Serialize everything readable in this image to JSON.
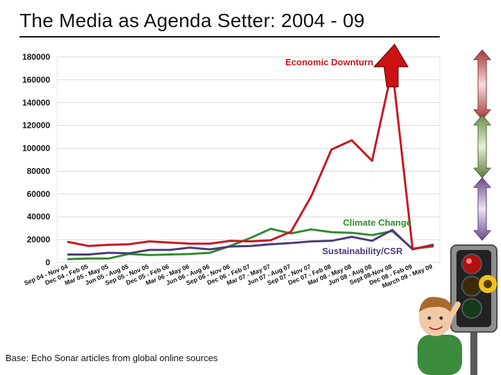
{
  "slide": {
    "title": "The Media as Agenda Setter: 2004 - 09",
    "footnote": "Base:  Echo Sonar articles from global online sources"
  },
  "colors": {
    "economic": "#c8141e",
    "climate": "#2e8b2e",
    "sustainability": "#4b3a78",
    "arrow_red": "#cc1111",
    "grid": "#d9d9d9"
  },
  "chart_data": {
    "type": "line",
    "title": "",
    "xlabel": "",
    "ylabel": "",
    "ylim": [
      0,
      180000
    ],
    "yticks": [
      "0",
      "20000",
      "40000",
      "60000",
      "80000",
      "100000",
      "120000",
      "140000",
      "160000",
      "180000"
    ],
    "grid": true,
    "categories": [
      "Sep 04 - Nov 04",
      "Dec 04 - Feb 05",
      "Mar 05 - May 05",
      "Jun 05 - Aug 05",
      "Sep 05 - Nov 05",
      "Dec 05 - Feb 06",
      "Mar 06 - May 06",
      "Jun 06 - Aug 06",
      "Sep 06 - Nov 06",
      "Dec 06 - Feb 07",
      "Mar 07 - May 07",
      "Jun 07 - Aug 07",
      "Sep 07 - Nov 07",
      "Dec 07 - Feb 08",
      "Mar 08 - May 08",
      "Jun 08 - Aug 08",
      "Sept 08-Nov 08",
      "Dec 08 - Feb 09",
      "March 09 - May 09"
    ],
    "series": [
      {
        "name": "Economic Downturn",
        "color": "#c8141e",
        "values": [
          18000,
          14500,
          15500,
          16000,
          18500,
          17500,
          16500,
          16500,
          19000,
          18500,
          19500,
          27000,
          58000,
          99000,
          107000,
          89000,
          170000,
          12000,
          15000
        ]
      },
      {
        "name": "Climate Change",
        "color": "#2e8b2e",
        "values": [
          3000,
          3500,
          3500,
          7500,
          6500,
          7000,
          7500,
          8500,
          14500,
          21500,
          29500,
          25500,
          29000,
          26500,
          26000,
          24000,
          27500,
          12000,
          14000
        ]
      },
      {
        "name": "Sustainability/CSR",
        "color": "#4b3a78",
        "values": [
          7000,
          7000,
          8500,
          8000,
          11000,
          11000,
          13000,
          11500,
          14000,
          14500,
          16000,
          17000,
          18500,
          19000,
          22500,
          19000,
          28500,
          11500,
          15500
        ]
      }
    ]
  }
}
